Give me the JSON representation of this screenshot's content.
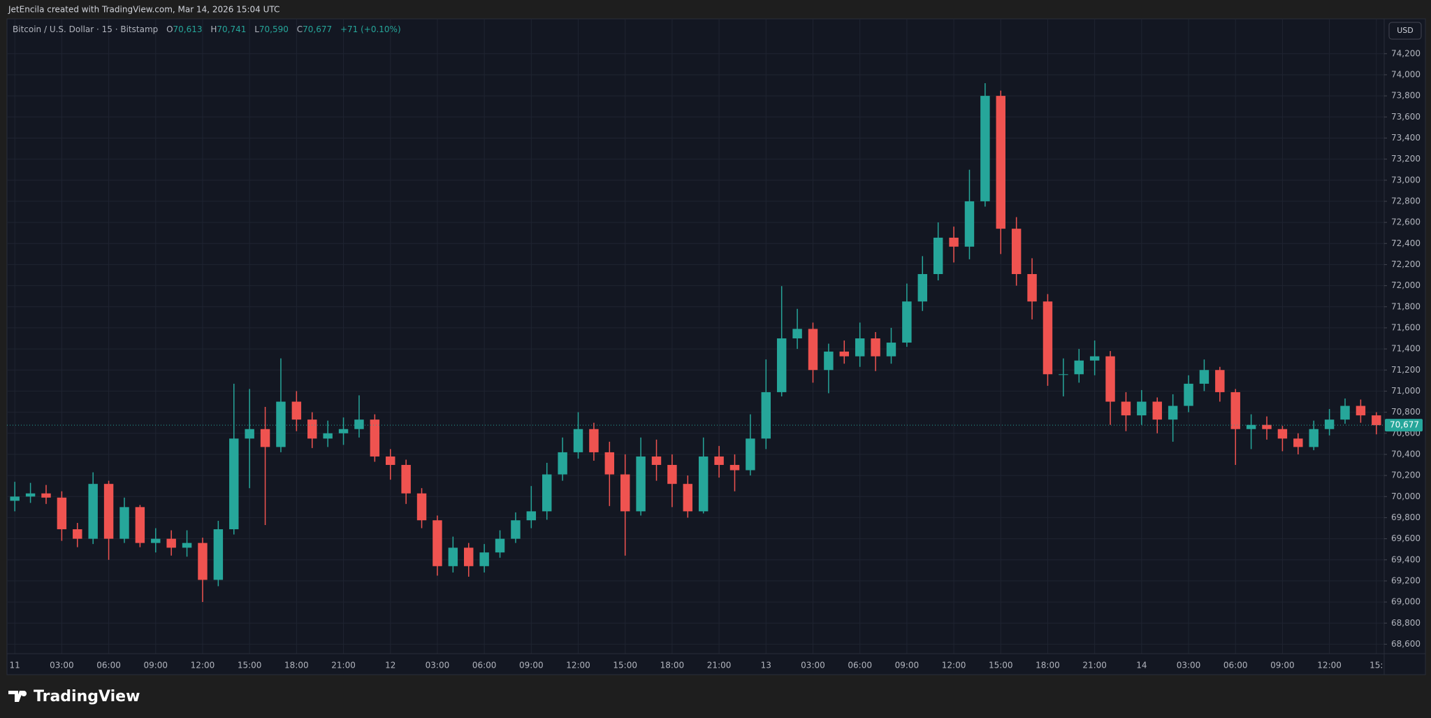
{
  "header": "JetEncila created with TradingView.com, Mar 14, 2026 15:04 UTC",
  "footer": {
    "brand": "TradingView"
  },
  "chart_data": {
    "type": "candlestick",
    "title": "Bitcoin / U.S. Dollar · 15 · Bitstamp",
    "legend_values": [
      {
        "key": "O",
        "value": "70,613"
      },
      {
        "key": "H",
        "value": "70,741"
      },
      {
        "key": "L",
        "value": "70,590"
      },
      {
        "key": "C",
        "value": "70,677"
      }
    ],
    "change": "+71 (+0.10%)",
    "currency": "USD",
    "up_color": "#26a69a",
    "down_color": "#ef5350",
    "grid": true,
    "last_price": {
      "value": 70677,
      "label": "70,677"
    },
    "categories": [
      "11 00:00",
      "11 01:00",
      "11 02:00",
      "11 03:00",
      "11 04:00",
      "11 05:00",
      "11 06:00",
      "11 07:00",
      "11 08:00",
      "11 09:00",
      "11 10:00",
      "11 11:00",
      "11 12:00",
      "11 13:00",
      "11 14:00",
      "11 15:00",
      "11 16:00",
      "11 17:00",
      "11 18:00",
      "11 19:00",
      "11 20:00",
      "11 21:00",
      "11 22:00",
      "11 23:00",
      "12 00:00",
      "12 01:00",
      "12 02:00",
      "12 03:00",
      "12 04:00",
      "12 05:00",
      "12 06:00",
      "12 07:00",
      "12 08:00",
      "12 09:00",
      "12 10:00",
      "12 11:00",
      "12 12:00",
      "12 13:00",
      "12 14:00",
      "12 15:00",
      "12 16:00",
      "12 17:00",
      "12 18:00",
      "12 19:00",
      "12 20:00",
      "12 21:00",
      "12 22:00",
      "12 23:00",
      "13 00:00",
      "13 01:00",
      "13 02:00",
      "13 03:00",
      "13 04:00",
      "13 05:00",
      "13 06:00",
      "13 07:00",
      "13 08:00",
      "13 09:00",
      "13 10:00",
      "13 11:00",
      "13 12:00",
      "13 13:00",
      "13 14:00",
      "13 15:00",
      "13 16:00",
      "13 17:00",
      "13 18:00",
      "13 19:00",
      "13 20:00",
      "13 21:00",
      "13 22:00",
      "13 23:00",
      "14 00:00",
      "14 01:00",
      "14 02:00",
      "14 03:00",
      "14 04:00",
      "14 05:00",
      "14 06:00",
      "14 07:00",
      "14 08:00",
      "14 09:00",
      "14 10:00",
      "14 11:00",
      "14 12:00",
      "14 13:00",
      "14 14:00",
      "14 15:00"
    ],
    "open": [
      69960,
      70000,
      70030,
      69990,
      69690,
      69600,
      70120,
      69600,
      69900,
      69560,
      69600,
      69515,
      69560,
      69210,
      69690,
      70550,
      70640,
      70470,
      70900,
      70730,
      70550,
      70600,
      70640,
      70730,
      70380,
      70300,
      70030,
      69775,
      69340,
      69515,
      69340,
      69470,
      69600,
      69775,
      69860,
      70210,
      70420,
      70640,
      70420,
      70210,
      69860,
      70380,
      70300,
      70120,
      69860,
      70380,
      70300,
      70250,
      70550,
      70990,
      71500,
      71590,
      71200,
      71375,
      71330,
      71500,
      71330,
      71460,
      71850,
      72110,
      72455,
      72370,
      72800,
      73800,
      72540,
      72110,
      71850,
      71160,
      71160,
      71290,
      71330,
      70900,
      70770,
      70900,
      70730,
      70860,
      71070,
      71200,
      70990,
      70640,
      70680,
      70640,
      70550,
      70470,
      70640,
      70730,
      70860,
      70770
    ],
    "high": [
      70140,
      70130,
      70110,
      70050,
      69750,
      70230,
      70150,
      69990,
      69920,
      69700,
      69680,
      69680,
      69610,
      69770,
      71070,
      71020,
      70850,
      71310,
      71000,
      70800,
      70720,
      70750,
      70960,
      70780,
      70450,
      70350,
      70080,
      69820,
      69620,
      69560,
      69550,
      69680,
      69850,
      70100,
      70320,
      70560,
      70800,
      70700,
      70520,
      70400,
      70560,
      70540,
      70400,
      70200,
      70560,
      70480,
      70400,
      70780,
      71300,
      71996,
      71780,
      71650,
      71450,
      71480,
      71650,
      71560,
      71600,
      72020,
      72280,
      72600,
      72560,
      73100,
      73920,
      73850,
      72650,
      72260,
      71920,
      71310,
      71400,
      71480,
      71380,
      70990,
      71010,
      70940,
      70970,
      71150,
      71300,
      71230,
      71020,
      70780,
      70760,
      70670,
      70600,
      70720,
      70830,
      70930,
      70920,
      70800
    ],
    "low": [
      69860,
      69940,
      69930,
      69580,
      69520,
      69550,
      69400,
      69560,
      69520,
      69470,
      69440,
      69430,
      69000,
      69150,
      69640,
      70080,
      69730,
      70420,
      70620,
      70460,
      70470,
      70490,
      70560,
      70330,
      70160,
      69930,
      69700,
      69250,
      69280,
      69240,
      69280,
      69420,
      69560,
      69700,
      69780,
      70150,
      70360,
      70340,
      69910,
      69440,
      69820,
      70150,
      69900,
      69800,
      69840,
      70180,
      70050,
      70200,
      70450,
      70950,
      71400,
      71080,
      70980,
      71260,
      71230,
      71190,
      71260,
      71420,
      71760,
      72050,
      72220,
      72250,
      72750,
      72300,
      72000,
      71680,
      71050,
      70950,
      71080,
      71150,
      70680,
      70620,
      70680,
      70600,
      70520,
      70800,
      71000,
      70900,
      70300,
      70450,
      70540,
      70430,
      70400,
      70440,
      70580,
      70690,
      70700,
      70590
    ],
    "close": [
      70000,
      70030,
      69990,
      69690,
      69600,
      70120,
      69600,
      69900,
      69560,
      69600,
      69515,
      69560,
      69210,
      69690,
      70550,
      70640,
      70470,
      70900,
      70730,
      70550,
      70600,
      70640,
      70730,
      70380,
      70300,
      70030,
      69775,
      69340,
      69515,
      69340,
      69470,
      69600,
      69775,
      69860,
      70210,
      70420,
      70640,
      70420,
      70210,
      69860,
      70380,
      70300,
      70120,
      69860,
      70380,
      70300,
      70250,
      70550,
      70990,
      71500,
      71590,
      71200,
      71375,
      71330,
      71500,
      71330,
      71460,
      71850,
      72110,
      72455,
      72370,
      72800,
      73800,
      72540,
      72110,
      71850,
      71160,
      71160,
      71290,
      71330,
      70900,
      70770,
      70900,
      70730,
      70860,
      71070,
      71200,
      70990,
      70640,
      70680,
      70640,
      70550,
      70470,
      70640,
      70730,
      70860,
      70770,
      70677
    ],
    "ylim": [
      68510,
      74530
    ],
    "yticks": [
      {
        "value": 68600,
        "label": "68,600"
      },
      {
        "value": 68800,
        "label": "68,800"
      },
      {
        "value": 69000,
        "label": "69,000"
      },
      {
        "value": 69200,
        "label": "69,200"
      },
      {
        "value": 69400,
        "label": "69,400"
      },
      {
        "value": 69600,
        "label": "69,600"
      },
      {
        "value": 69800,
        "label": "69,800"
      },
      {
        "value": 70000,
        "label": "70,000"
      },
      {
        "value": 70200,
        "label": "70,200"
      },
      {
        "value": 70400,
        "label": "70,400"
      },
      {
        "value": 70600,
        "label": "70,600"
      },
      {
        "value": 70800,
        "label": "70,800"
      },
      {
        "value": 71000,
        "label": "71,000"
      },
      {
        "value": 71200,
        "label": "71,200"
      },
      {
        "value": 71400,
        "label": "71,400"
      },
      {
        "value": 71600,
        "label": "71,600"
      },
      {
        "value": 71800,
        "label": "71,800"
      },
      {
        "value": 72000,
        "label": "72,000"
      },
      {
        "value": 72200,
        "label": "72,200"
      },
      {
        "value": 72400,
        "label": "72,400"
      },
      {
        "value": 72600,
        "label": "72,600"
      },
      {
        "value": 72800,
        "label": "72,800"
      },
      {
        "value": 73000,
        "label": "73,000"
      },
      {
        "value": 73200,
        "label": "73,200"
      },
      {
        "value": 73400,
        "label": "73,400"
      },
      {
        "value": 73600,
        "label": "73,600"
      },
      {
        "value": 73800,
        "label": "73,800"
      },
      {
        "value": 74000,
        "label": "74,000"
      },
      {
        "value": 74200,
        "label": "74,200"
      }
    ],
    "xticks": [
      {
        "value": "11 00:00",
        "label": "11"
      },
      {
        "value": "11 03:00",
        "label": "03:00"
      },
      {
        "value": "11 06:00",
        "label": "06:00"
      },
      {
        "value": "11 09:00",
        "label": "09:00"
      },
      {
        "value": "11 12:00",
        "label": "12:00"
      },
      {
        "value": "11 15:00",
        "label": "15:00"
      },
      {
        "value": "11 18:00",
        "label": "18:00"
      },
      {
        "value": "11 21:00",
        "label": "21:00"
      },
      {
        "value": "12 00:00",
        "label": "12"
      },
      {
        "value": "12 03:00",
        "label": "03:00"
      },
      {
        "value": "12 06:00",
        "label": "06:00"
      },
      {
        "value": "12 09:00",
        "label": "09:00"
      },
      {
        "value": "12 12:00",
        "label": "12:00"
      },
      {
        "value": "12 15:00",
        "label": "15:00"
      },
      {
        "value": "12 18:00",
        "label": "18:00"
      },
      {
        "value": "12 21:00",
        "label": "21:00"
      },
      {
        "value": "13 00:00",
        "label": "13"
      },
      {
        "value": "13 03:00",
        "label": "03:00"
      },
      {
        "value": "13 06:00",
        "label": "06:00"
      },
      {
        "value": "13 09:00",
        "label": "09:00"
      },
      {
        "value": "13 12:00",
        "label": "12:00"
      },
      {
        "value": "13 15:00",
        "label": "15:00"
      },
      {
        "value": "13 18:00",
        "label": "18:00"
      },
      {
        "value": "13 21:00",
        "label": "21:00"
      },
      {
        "value": "14 00:00",
        "label": "14"
      },
      {
        "value": "14 03:00",
        "label": "03:00"
      },
      {
        "value": "14 06:00",
        "label": "06:00"
      },
      {
        "value": "14 09:00",
        "label": "09:00"
      },
      {
        "value": "14 12:00",
        "label": "12:00"
      },
      {
        "value": "14 15:00",
        "label": "15:"
      }
    ]
  }
}
